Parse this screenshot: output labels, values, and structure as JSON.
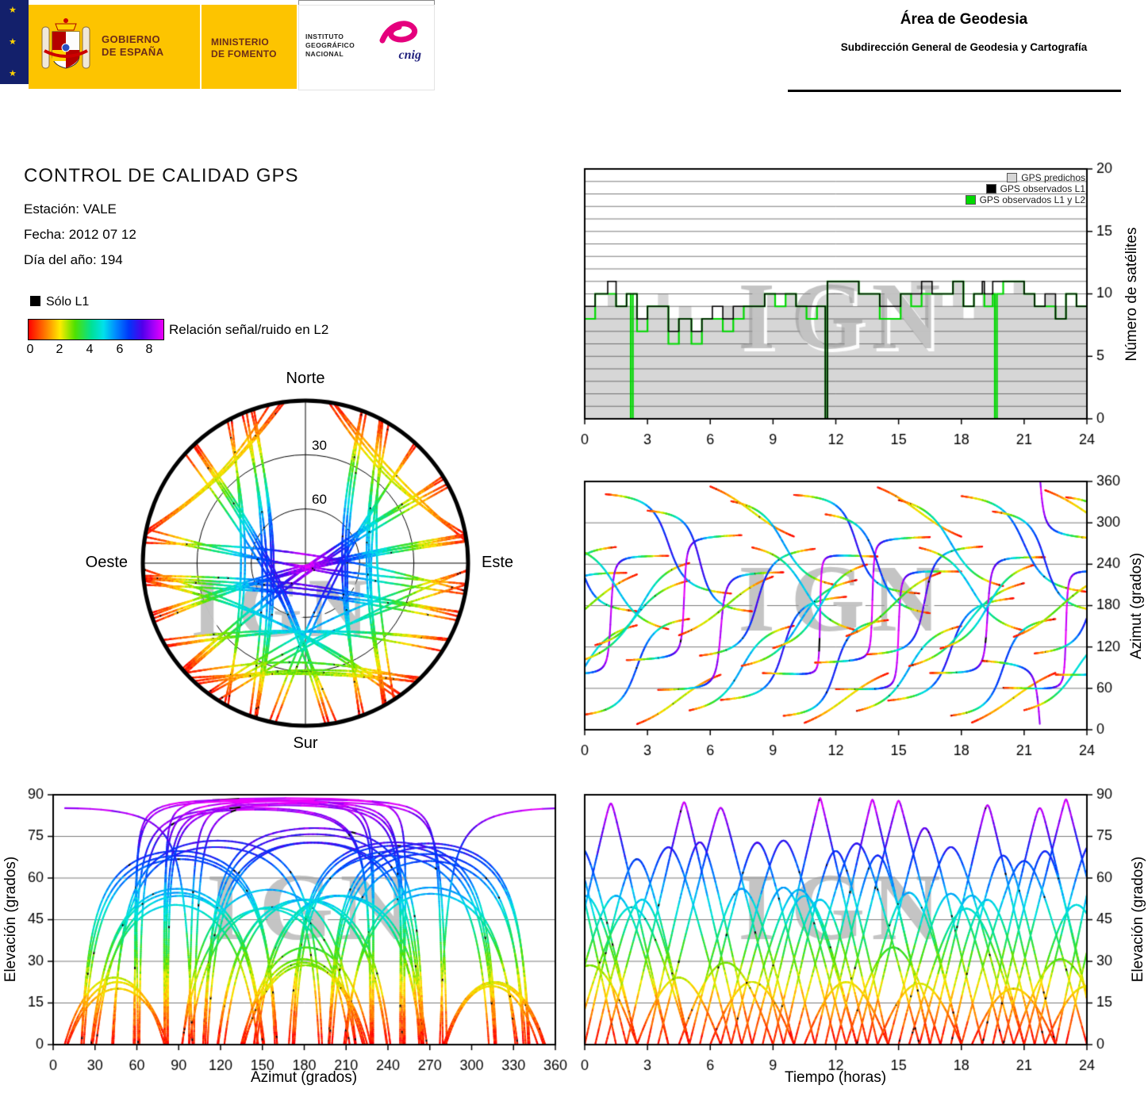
{
  "header": {
    "gobierno_line1": "GOBIERNO",
    "gobierno_line2": "DE ESPAÑA",
    "ministerio_line1": "MINISTERIO",
    "ministerio_line2": "DE FOMENTO",
    "instituto_line1": "INSTITUTO",
    "instituto_line2": "GEOGRÁFICO",
    "instituto_line3": "NACIONAL",
    "cnig": "cnig",
    "area": "Área de Geodesia",
    "subdireccion": "Subdirección General de Geodesia y Cartografía"
  },
  "info": {
    "title": "CONTROL DE CALIDAD GPS",
    "station": "Estación: VALE",
    "date": "Fecha: 2012 07 12",
    "doy": "Día del año: 194"
  },
  "legend": {
    "solo_l1": "Sólo L1",
    "solo_l1_color": "#000000",
    "colorbar_label": "Relación señal/ruido en L2",
    "colorbar_ticks": [
      0,
      2,
      4,
      6,
      8
    ],
    "colorbar_max": 9,
    "colormap": [
      [
        0.0,
        255,
        0,
        0
      ],
      [
        1.2,
        255,
        130,
        0
      ],
      [
        2.1,
        255,
        235,
        0
      ],
      [
        3.1,
        80,
        225,
        0
      ],
      [
        4.2,
        0,
        225,
        150
      ],
      [
        5.0,
        0,
        225,
        235
      ],
      [
        5.8,
        0,
        140,
        255
      ],
      [
        6.7,
        0,
        55,
        250
      ],
      [
        7.6,
        80,
        0,
        235
      ],
      [
        8.4,
        170,
        0,
        250
      ],
      [
        9.0,
        235,
        0,
        250
      ]
    ]
  },
  "watermark": "IGN",
  "chart_data": {
    "tracks": {
      "type": "scatter",
      "description": "GPS satellite passes over station VALE. Each pass = [start_hour, duration_hours, rise_azimuth_deg, set_azimuth_deg, curvature]. Elevation/azimuth along the pass derive from its sky chord; point color encodes L2 signal/noise ratio (~ elevation/90 * 9).",
      "passes": [
        [
          -4.0,
          6.0,
          60,
          230,
          0.06
        ],
        [
          -3.5,
          5.0,
          110,
          265,
          0.05
        ],
        [
          -3.0,
          5.5,
          315,
          170,
          0.08
        ],
        [
          -2.5,
          5.0,
          30,
          150,
          0.09
        ],
        [
          -2.0,
          4.5,
          135,
          225,
          0.06
        ],
        [
          -1.5,
          5.5,
          80,
          250,
          0.06
        ],
        [
          -1.0,
          5.0,
          265,
          145,
          0.07
        ],
        [
          -0.5,
          5.5,
          95,
          215,
          0.07
        ],
        [
          0.0,
          5.0,
          20,
          160,
          0.1
        ],
        [
          0.5,
          4.5,
          120,
          240,
          0.08
        ],
        [
          1.0,
          6.0,
          340,
          200,
          0.1
        ],
        [
          2.0,
          5.5,
          100,
          280,
          0.05
        ],
        [
          2.5,
          4.0,
          10,
          80,
          0.05
        ],
        [
          3.0,
          5.0,
          315,
          170,
          0.08
        ],
        [
          3.5,
          6.0,
          60,
          230,
          0.06
        ],
        [
          4.5,
          4.5,
          135,
          225,
          0.06
        ],
        [
          5.0,
          5.0,
          30,
          150,
          0.09
        ],
        [
          5.5,
          5.5,
          110,
          265,
          0.05
        ],
        [
          6.0,
          4.0,
          350,
          280,
          0.05
        ],
        [
          6.5,
          6.0,
          45,
          190,
          0.07
        ],
        [
          7.0,
          5.0,
          330,
          210,
          0.09
        ],
        [
          7.5,
          5.5,
          95,
          215,
          0.07
        ],
        [
          8.0,
          5.0,
          265,
          145,
          0.07
        ],
        [
          8.5,
          5.5,
          80,
          250,
          0.06
        ],
        [
          9.0,
          4.5,
          120,
          240,
          0.08
        ],
        [
          9.5,
          5.0,
          20,
          160,
          0.1
        ],
        [
          10.0,
          6.0,
          340,
          200,
          0.1
        ],
        [
          10.5,
          4.0,
          10,
          80,
          0.05
        ],
        [
          11.0,
          5.5,
          100,
          280,
          0.05
        ],
        [
          11.5,
          5.0,
          315,
          170,
          0.08
        ],
        [
          12.0,
          6.0,
          60,
          230,
          0.06
        ],
        [
          12.5,
          4.5,
          135,
          225,
          0.06
        ],
        [
          13.0,
          5.0,
          30,
          150,
          0.09
        ],
        [
          13.5,
          5.5,
          110,
          265,
          0.05
        ],
        [
          14.0,
          4.0,
          350,
          280,
          0.05
        ],
        [
          14.5,
          6.0,
          45,
          190,
          0.07
        ],
        [
          15.0,
          5.0,
          330,
          210,
          0.09
        ],
        [
          15.5,
          5.5,
          95,
          215,
          0.07
        ],
        [
          16.0,
          5.0,
          265,
          145,
          0.07
        ],
        [
          16.5,
          5.5,
          80,
          250,
          0.06
        ],
        [
          17.0,
          4.5,
          120,
          240,
          0.08
        ],
        [
          17.5,
          5.0,
          20,
          160,
          0.1
        ],
        [
          18.0,
          6.0,
          340,
          200,
          0.1
        ],
        [
          18.5,
          4.0,
          10,
          80,
          0.05
        ],
        [
          19.0,
          5.5,
          100,
          280,
          0.05
        ],
        [
          19.5,
          5.0,
          315,
          170,
          0.08
        ],
        [
          20.0,
          6.0,
          60,
          230,
          0.06
        ],
        [
          20.5,
          4.5,
          135,
          225,
          0.06
        ],
        [
          21.0,
          5.0,
          30,
          150,
          0.09
        ],
        [
          21.5,
          5.5,
          110,
          265,
          0.05
        ],
        [
          22.0,
          4.0,
          350,
          280,
          0.05
        ],
        [
          22.5,
          5.0,
          80,
          250,
          0.06
        ],
        [
          23.0,
          5.0,
          340,
          200,
          0.1
        ]
      ]
    },
    "charts": [
      {
        "id": "satellite-count",
        "type": "area",
        "xlabel": "",
        "ylabel": "Número de satélites",
        "xlim": [
          0,
          24
        ],
        "ylim": [
          0,
          20
        ],
        "xticks": [
          0,
          3,
          6,
          9,
          12,
          15,
          18,
          21,
          24
        ],
        "yticks": [
          0,
          5,
          10,
          15,
          20
        ],
        "grid_step": 1,
        "legend": [
          {
            "label": "GPS predichos",
            "color": "#d6d6d6"
          },
          {
            "label": "GPS observados L1",
            "color": "#000000"
          },
          {
            "label": "GPS observados L1 y L2",
            "color": "#00d800"
          }
        ],
        "dropouts": [
          [
            2.18,
            2.26,
            "l1l2"
          ],
          [
            11.45,
            11.52,
            "both"
          ],
          [
            11.62,
            11.68,
            "both"
          ],
          [
            19.58,
            19.66,
            "l1l2"
          ]
        ]
      },
      {
        "id": "azimuth-vs-time",
        "type": "scatter",
        "xlabel": "",
        "ylabel": "Azimut (grados)",
        "xlim": [
          0,
          24
        ],
        "ylim": [
          0,
          360
        ],
        "xticks": [
          0,
          3,
          6,
          9,
          12,
          15,
          18,
          21,
          24
        ],
        "yticks": [
          0,
          60,
          120,
          180,
          240,
          300,
          360
        ]
      },
      {
        "id": "elevation-vs-azimuth",
        "type": "scatter",
        "xlabel": "Azimut (grados)",
        "ylabel": "Elevación (grados)",
        "xlim": [
          0,
          360
        ],
        "ylim": [
          0,
          90
        ],
        "xticks": [
          0,
          30,
          60,
          90,
          120,
          150,
          180,
          210,
          240,
          270,
          300,
          330,
          360
        ],
        "yticks": [
          0,
          15,
          30,
          45,
          60,
          75,
          90
        ]
      },
      {
        "id": "elevation-vs-time",
        "type": "scatter",
        "xlabel": "Tiempo (horas)",
        "ylabel": "Elevación (grados)",
        "xlim": [
          0,
          24
        ],
        "ylim": [
          0,
          90
        ],
        "xticks": [
          0,
          3,
          6,
          9,
          12,
          15,
          18,
          21,
          24
        ],
        "yticks": [
          0,
          15,
          30,
          45,
          60,
          75,
          90
        ]
      },
      {
        "id": "skyplot",
        "type": "scatter",
        "rings_elevation": [
          30,
          60
        ],
        "ring_labels": [
          "30",
          "60"
        ],
        "cardinal": {
          "n": "Norte",
          "s": "Sur",
          "e": "Este",
          "w": "Oeste"
        }
      }
    ]
  }
}
